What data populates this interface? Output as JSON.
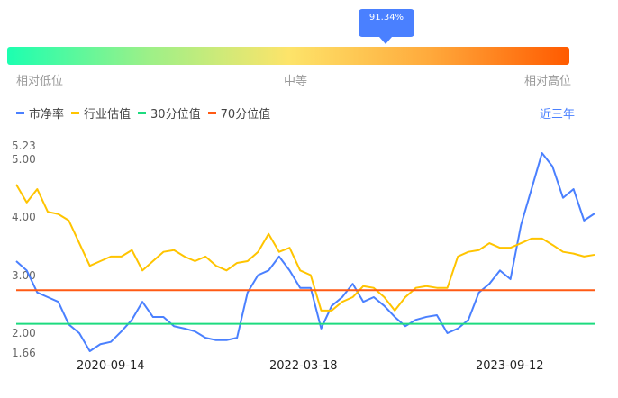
{
  "indicator": {
    "percentile_label": "91.34%",
    "percentile": 91.34,
    "levels": [
      "相对低位",
      "中等",
      "相对高位"
    ]
  },
  "legend": {
    "items": [
      {
        "label": "市净率",
        "color": "#4a80ff"
      },
      {
        "label": "行业估值",
        "color": "#ffc400"
      },
      {
        "label": "30分位值",
        "color": "#1ddb7f"
      },
      {
        "label": "70分位值",
        "color": "#ff5a14"
      }
    ],
    "range_label": "近三年"
  },
  "chart_data": {
    "type": "line",
    "x": [
      "2019-12",
      "2020-01",
      "2020-02",
      "2020-03",
      "2020-04",
      "2020-05",
      "2020-06",
      "2020-07",
      "2020-08",
      "2020-09",
      "2020-10",
      "2020-11",
      "2020-12",
      "2021-01",
      "2021-02",
      "2021-03",
      "2021-04",
      "2021-05",
      "2021-06",
      "2021-07",
      "2021-08",
      "2021-09",
      "2021-10",
      "2021-11",
      "2021-12",
      "2022-01",
      "2022-02",
      "2022-03",
      "2022-04",
      "2022-05",
      "2022-06",
      "2022-07",
      "2022-08",
      "2022-09",
      "2022-10",
      "2022-11",
      "2022-12",
      "2023-01",
      "2023-02",
      "2023-03",
      "2023-04",
      "2023-05",
      "2023-06",
      "2023-07",
      "2023-08",
      "2023-09",
      "2023-10",
      "2023-11",
      "2023-12",
      "2024-01",
      "2024-02",
      "2024-03",
      "2024-04",
      "2024-05",
      "2024-06",
      "2024-07"
    ],
    "series": [
      {
        "name": "市净率",
        "color": "#4a80ff",
        "values": [
          3.24,
          3.08,
          2.7,
          2.62,
          2.54,
          2.15,
          2.0,
          1.69,
          1.81,
          1.85,
          2.03,
          2.23,
          2.54,
          2.28,
          2.28,
          2.12,
          2.08,
          2.03,
          1.92,
          1.88,
          1.88,
          1.92,
          2.7,
          3.0,
          3.08,
          3.32,
          3.08,
          2.78,
          2.78,
          2.08,
          2.47,
          2.62,
          2.85,
          2.54,
          2.62,
          2.47,
          2.28,
          2.12,
          2.23,
          2.28,
          2.31,
          2.0,
          2.08,
          2.23,
          2.7,
          2.85,
          3.08,
          2.93,
          3.86,
          4.48,
          5.1,
          4.87,
          4.33,
          4.48,
          3.94,
          4.06
        ]
      },
      {
        "name": "行业估值",
        "color": "#ffc400",
        "values": [
          4.56,
          4.25,
          4.48,
          4.09,
          4.05,
          3.94,
          3.55,
          3.16,
          3.24,
          3.32,
          3.32,
          3.43,
          3.08,
          3.24,
          3.4,
          3.43,
          3.32,
          3.24,
          3.32,
          3.16,
          3.08,
          3.21,
          3.24,
          3.4,
          3.71,
          3.4,
          3.47,
          3.08,
          3.0,
          2.39,
          2.39,
          2.54,
          2.62,
          2.81,
          2.78,
          2.62,
          2.39,
          2.62,
          2.78,
          2.81,
          2.78,
          2.78,
          3.32,
          3.4,
          3.43,
          3.55,
          3.47,
          3.47,
          3.55,
          3.63,
          3.63,
          3.52,
          3.4,
          3.37,
          3.32,
          3.35
        ]
      },
      {
        "name": "30分位值",
        "color": "#1ddb7f",
        "constant": 2.16
      },
      {
        "name": "70分位值",
        "color": "#ff5a14",
        "constant": 2.74
      }
    ],
    "y_ticks": [
      "5.23",
      "5.00",
      "4.00",
      "3.00",
      "2.00",
      "1.66"
    ],
    "ylim": [
      1.66,
      5.23
    ],
    "x_ticks": [
      "2020-09-14",
      "2022-03-18",
      "2023-09-12"
    ],
    "grid": false,
    "legend": "top-left"
  }
}
